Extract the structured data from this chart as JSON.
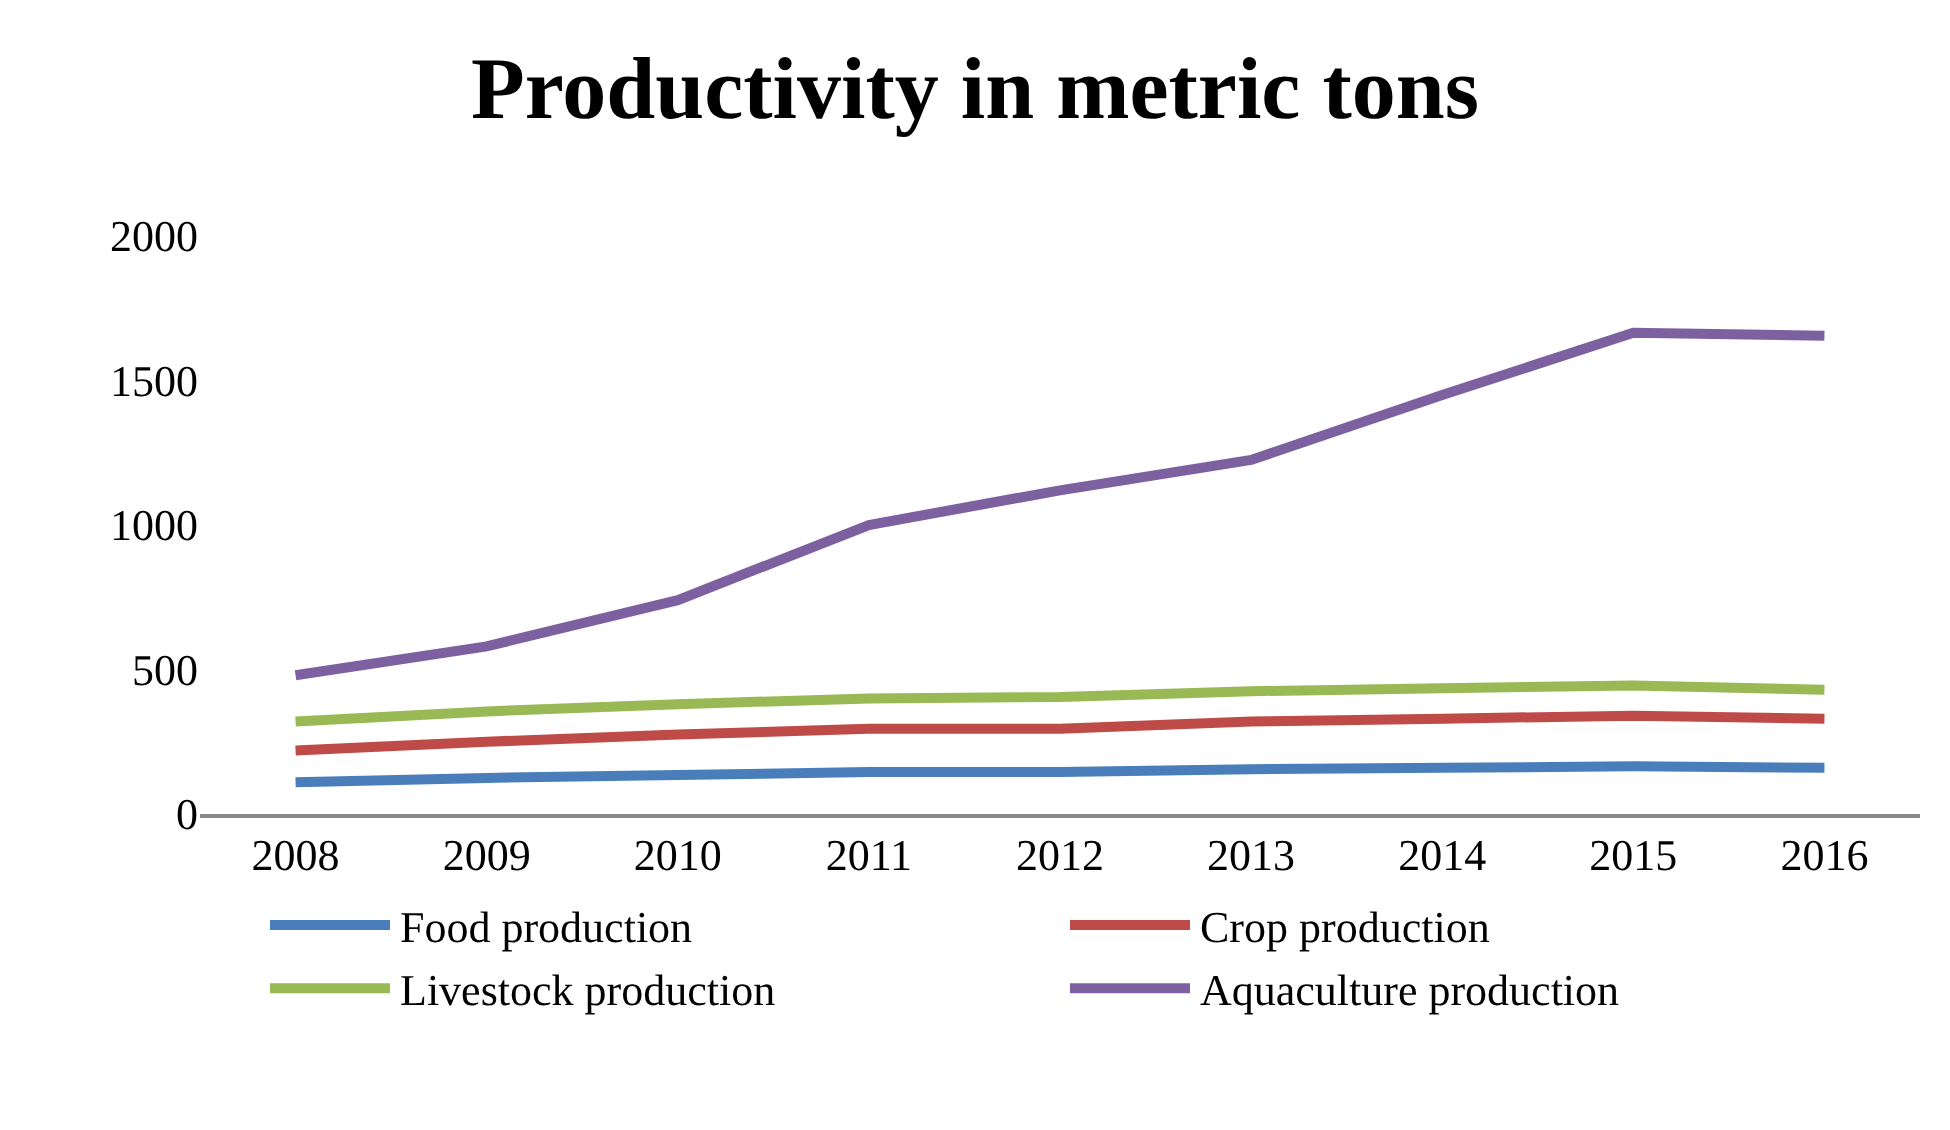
{
  "chart_data": {
    "type": "line",
    "title": "Productivity in metric tons",
    "categories": [
      "2008",
      "2009",
      "2010",
      "2011",
      "2012",
      "2013",
      "2014",
      "2015",
      "2016"
    ],
    "series": [
      {
        "name": "Food production",
        "color": "#4a7ebb",
        "values": [
          110,
          125,
          135,
          145,
          145,
          155,
          160,
          165,
          160
        ]
      },
      {
        "name": "Crop production",
        "color": "#be4b48",
        "values": [
          220,
          250,
          275,
          295,
          295,
          320,
          330,
          340,
          330
        ]
      },
      {
        "name": "Livestock production",
        "color": "#98b954",
        "values": [
          320,
          355,
          380,
          400,
          405,
          425,
          435,
          445,
          430
        ]
      },
      {
        "name": "Aquaculture production",
        "color": "#7d60a0",
        "values": [
          480,
          580,
          740,
          1000,
          1120,
          1225,
          1450,
          1665,
          1655
        ]
      }
    ],
    "ylim": [
      0,
      2000
    ],
    "yticks": [
      0,
      500,
      1000,
      1500,
      2000
    ],
    "grid": false,
    "legend": "bottom",
    "marker": "none",
    "line_style": "solid"
  }
}
